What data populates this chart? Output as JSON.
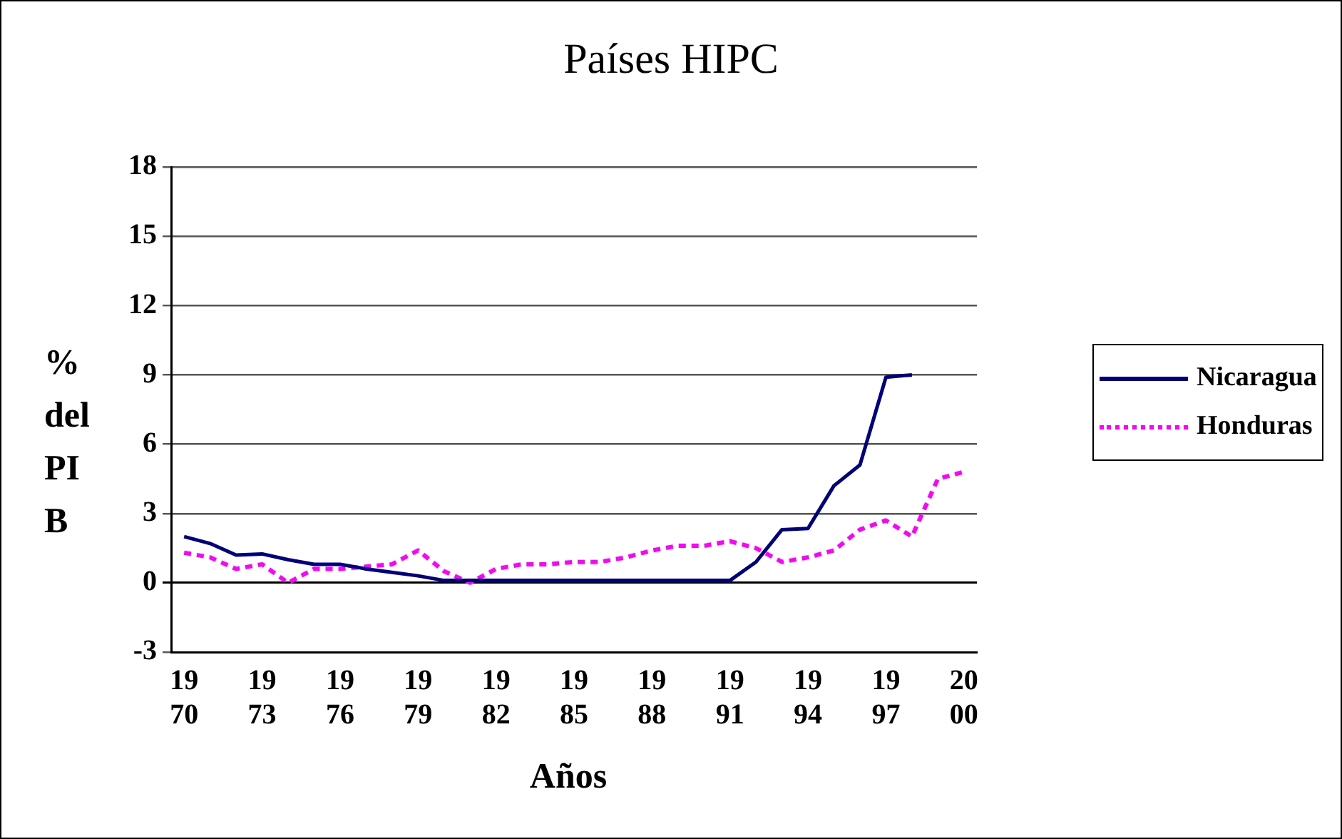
{
  "chart_data": {
    "type": "line",
    "title": "Países HIPC",
    "xlabel": "Años",
    "ylabel": "% del PIB",
    "categories": [
      "1970",
      null,
      null,
      "1973",
      null,
      null,
      "1976",
      null,
      null,
      "1979",
      null,
      null,
      "1982",
      null,
      null,
      "1985",
      null,
      null,
      "1988",
      null,
      null,
      "1991",
      null,
      null,
      "1994",
      null,
      null,
      "1997",
      null,
      null,
      "2000"
    ],
    "series": [
      {
        "name": "Nicaragua",
        "color": "#000080",
        "line_style": "solid",
        "values": [
          2.0,
          1.7,
          1.2,
          1.25,
          1.0,
          0.8,
          0.8,
          0.6,
          0.45,
          0.3,
          0.1,
          0.1,
          0.1,
          0.1,
          0.1,
          0.1,
          0.1,
          0.1,
          0.1,
          0.1,
          0.1,
          0.1,
          0.9,
          2.3,
          2.35,
          4.2,
          5.1,
          8.9,
          9.0,
          null,
          null
        ]
      },
      {
        "name": "Honduras",
        "color": "#ff00ff",
        "line_style": "dotted",
        "values": [
          1.3,
          1.1,
          0.6,
          0.8,
          0.0,
          0.6,
          0.6,
          0.7,
          0.8,
          1.4,
          0.5,
          0.0,
          0.6,
          0.8,
          0.8,
          0.9,
          0.9,
          1.1,
          1.4,
          1.6,
          1.6,
          1.8,
          1.5,
          0.9,
          1.1,
          1.4,
          2.3,
          2.7,
          2.0,
          4.5,
          4.8
        ]
      }
    ],
    "ylim": [
      -3,
      18
    ],
    "yticks": [
      -3,
      0,
      3,
      6,
      9,
      12,
      15,
      18
    ],
    "grid": "y",
    "legend": "right",
    "marker": "none"
  }
}
